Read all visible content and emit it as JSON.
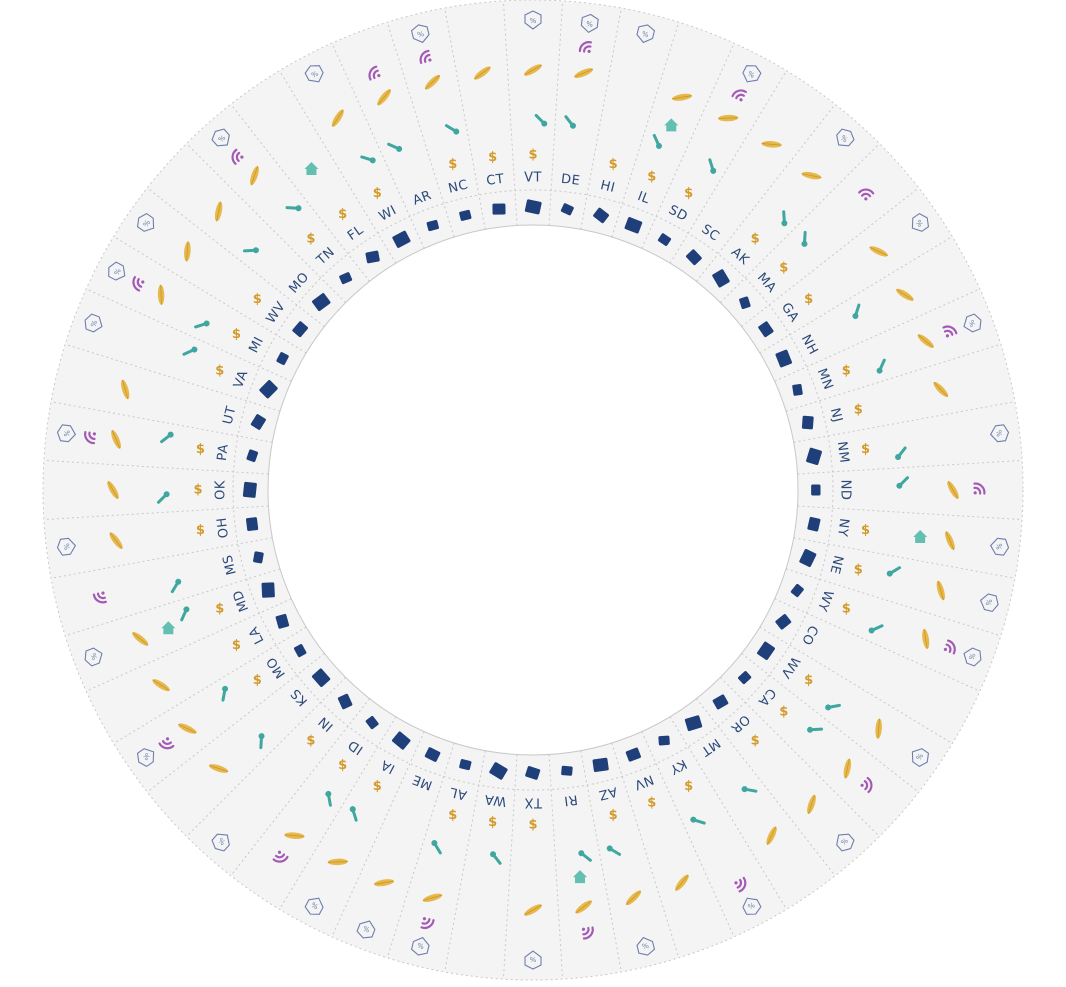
{
  "states": [
    "NC",
    "CT",
    "VT",
    "DE",
    "HI",
    "IL",
    "SD",
    "SC",
    "AK",
    "MA",
    "GA",
    "NH",
    "MN",
    "NJ",
    "NM",
    "ND",
    "NY",
    "NE",
    "WY",
    "CO",
    "WV",
    "CA",
    "OR",
    "MT",
    "KY",
    "NV",
    "AZ",
    "RI",
    "TX",
    "WA",
    "AL",
    "ME",
    "IA",
    "ID",
    "IN",
    "KS",
    "MO",
    "LA",
    "MD",
    "MS",
    "OH",
    "OK",
    "PA",
    "UT",
    "VA",
    "MI",
    "WV",
    "MO",
    "TN",
    "FL",
    "WI",
    "AR"
  ],
  "rings": [
    "state-shape",
    "dollar",
    "thermometer",
    "leaf",
    "broadband",
    "discount"
  ],
  "colors": {
    "shape": "#1f3f7a",
    "label": "#2c4a7a",
    "dollar": "#d49a2a",
    "thermo": "#3fa7a0",
    "leaf": "#e7b84a",
    "wifi": "#a45ab5",
    "house": "#63c0b0",
    "badge": "#6d7fae",
    "sector": "#f4f4f4",
    "divider": "#c8c8c8"
  },
  "icon_glyphs": {
    "dollar": "$",
    "thermo": "🌡",
    "leaf": "❦",
    "wifi": "((·",
    "house": "⌂",
    "badge": "%"
  }
}
